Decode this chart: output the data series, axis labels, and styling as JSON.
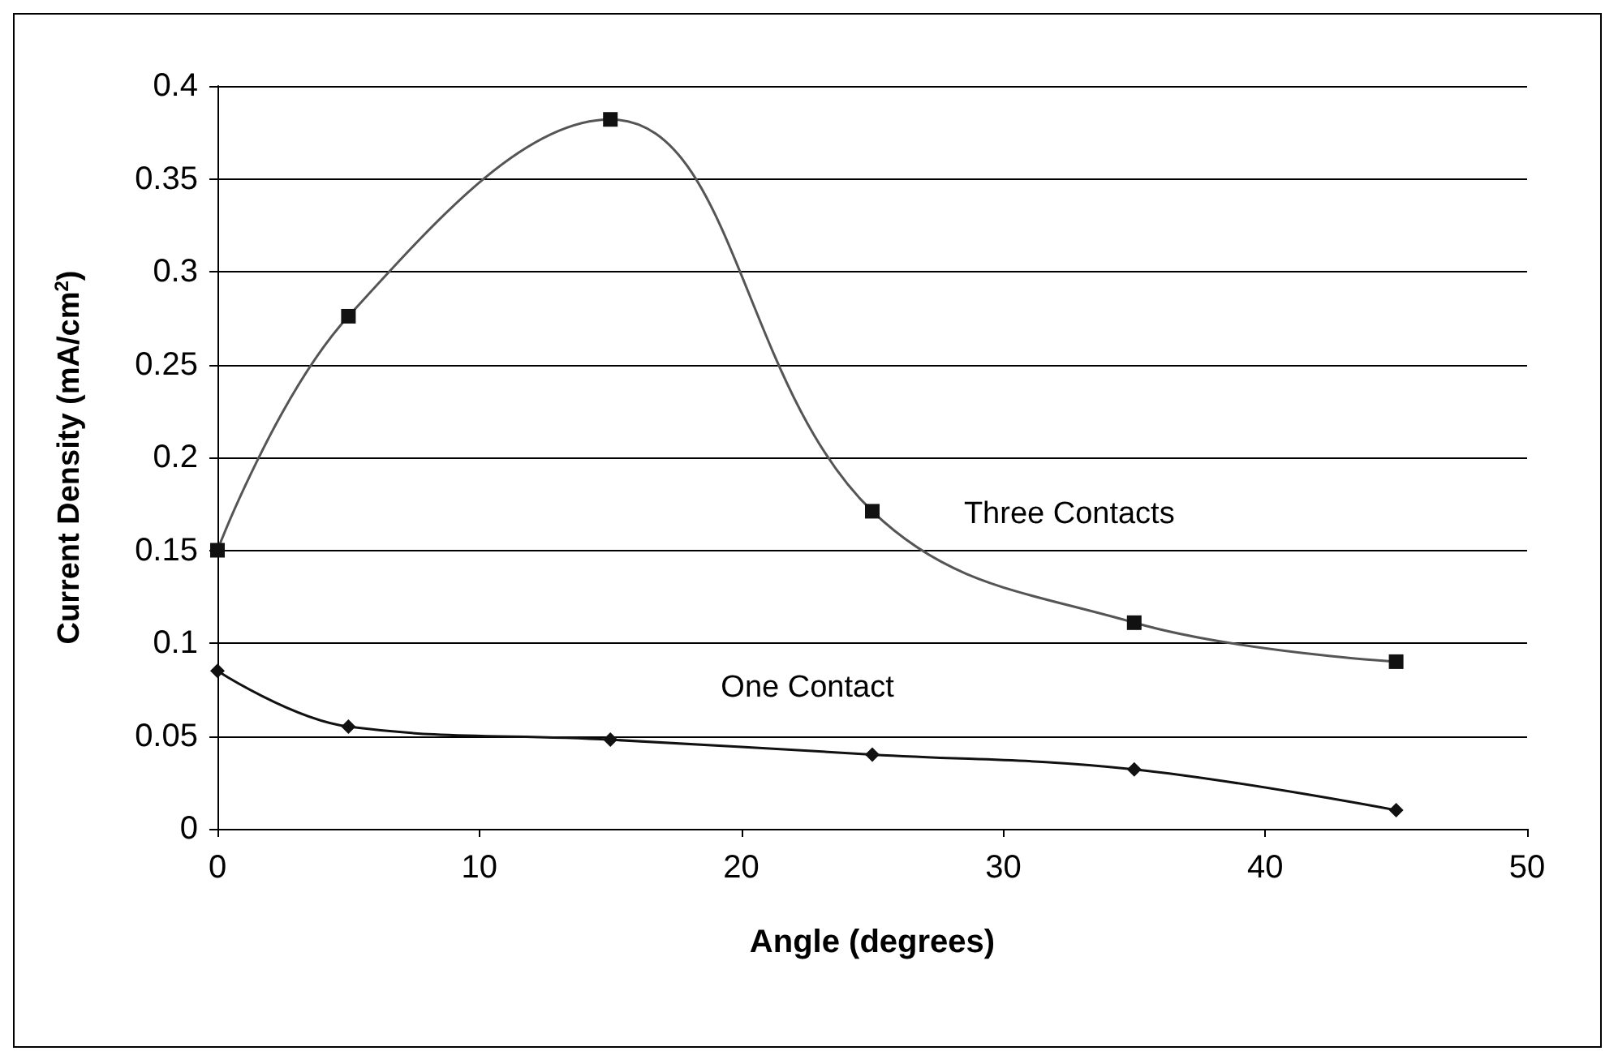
{
  "chart_data": {
    "type": "line",
    "xlabel": "Angle (degrees)",
    "ylabel": "Current Density (mA/cm$^{2}$)",
    "xlim": [
      0,
      50
    ],
    "xticks": [
      0,
      10,
      20,
      30,
      40,
      50
    ],
    "ylim": [
      0,
      0.4
    ],
    "yticks": [
      0,
      0.05,
      0.1,
      0.15,
      0.2,
      0.25,
      0.3,
      0.35,
      0.4
    ],
    "grid": "y",
    "legend": false,
    "x": [
      0,
      5,
      15,
      25,
      35,
      45
    ],
    "series": [
      {
        "name": "Three Contacts",
        "color": "#555555",
        "marker": "square",
        "values": [
          0.15,
          0.276,
          0.382,
          0.171,
          0.111,
          0.09
        ]
      },
      {
        "name": "One Contact",
        "color": "#111111",
        "marker": "diamond",
        "values": [
          0.085,
          0.055,
          0.048,
          0.04,
          0.032,
          0.01
        ]
      }
    ]
  }
}
